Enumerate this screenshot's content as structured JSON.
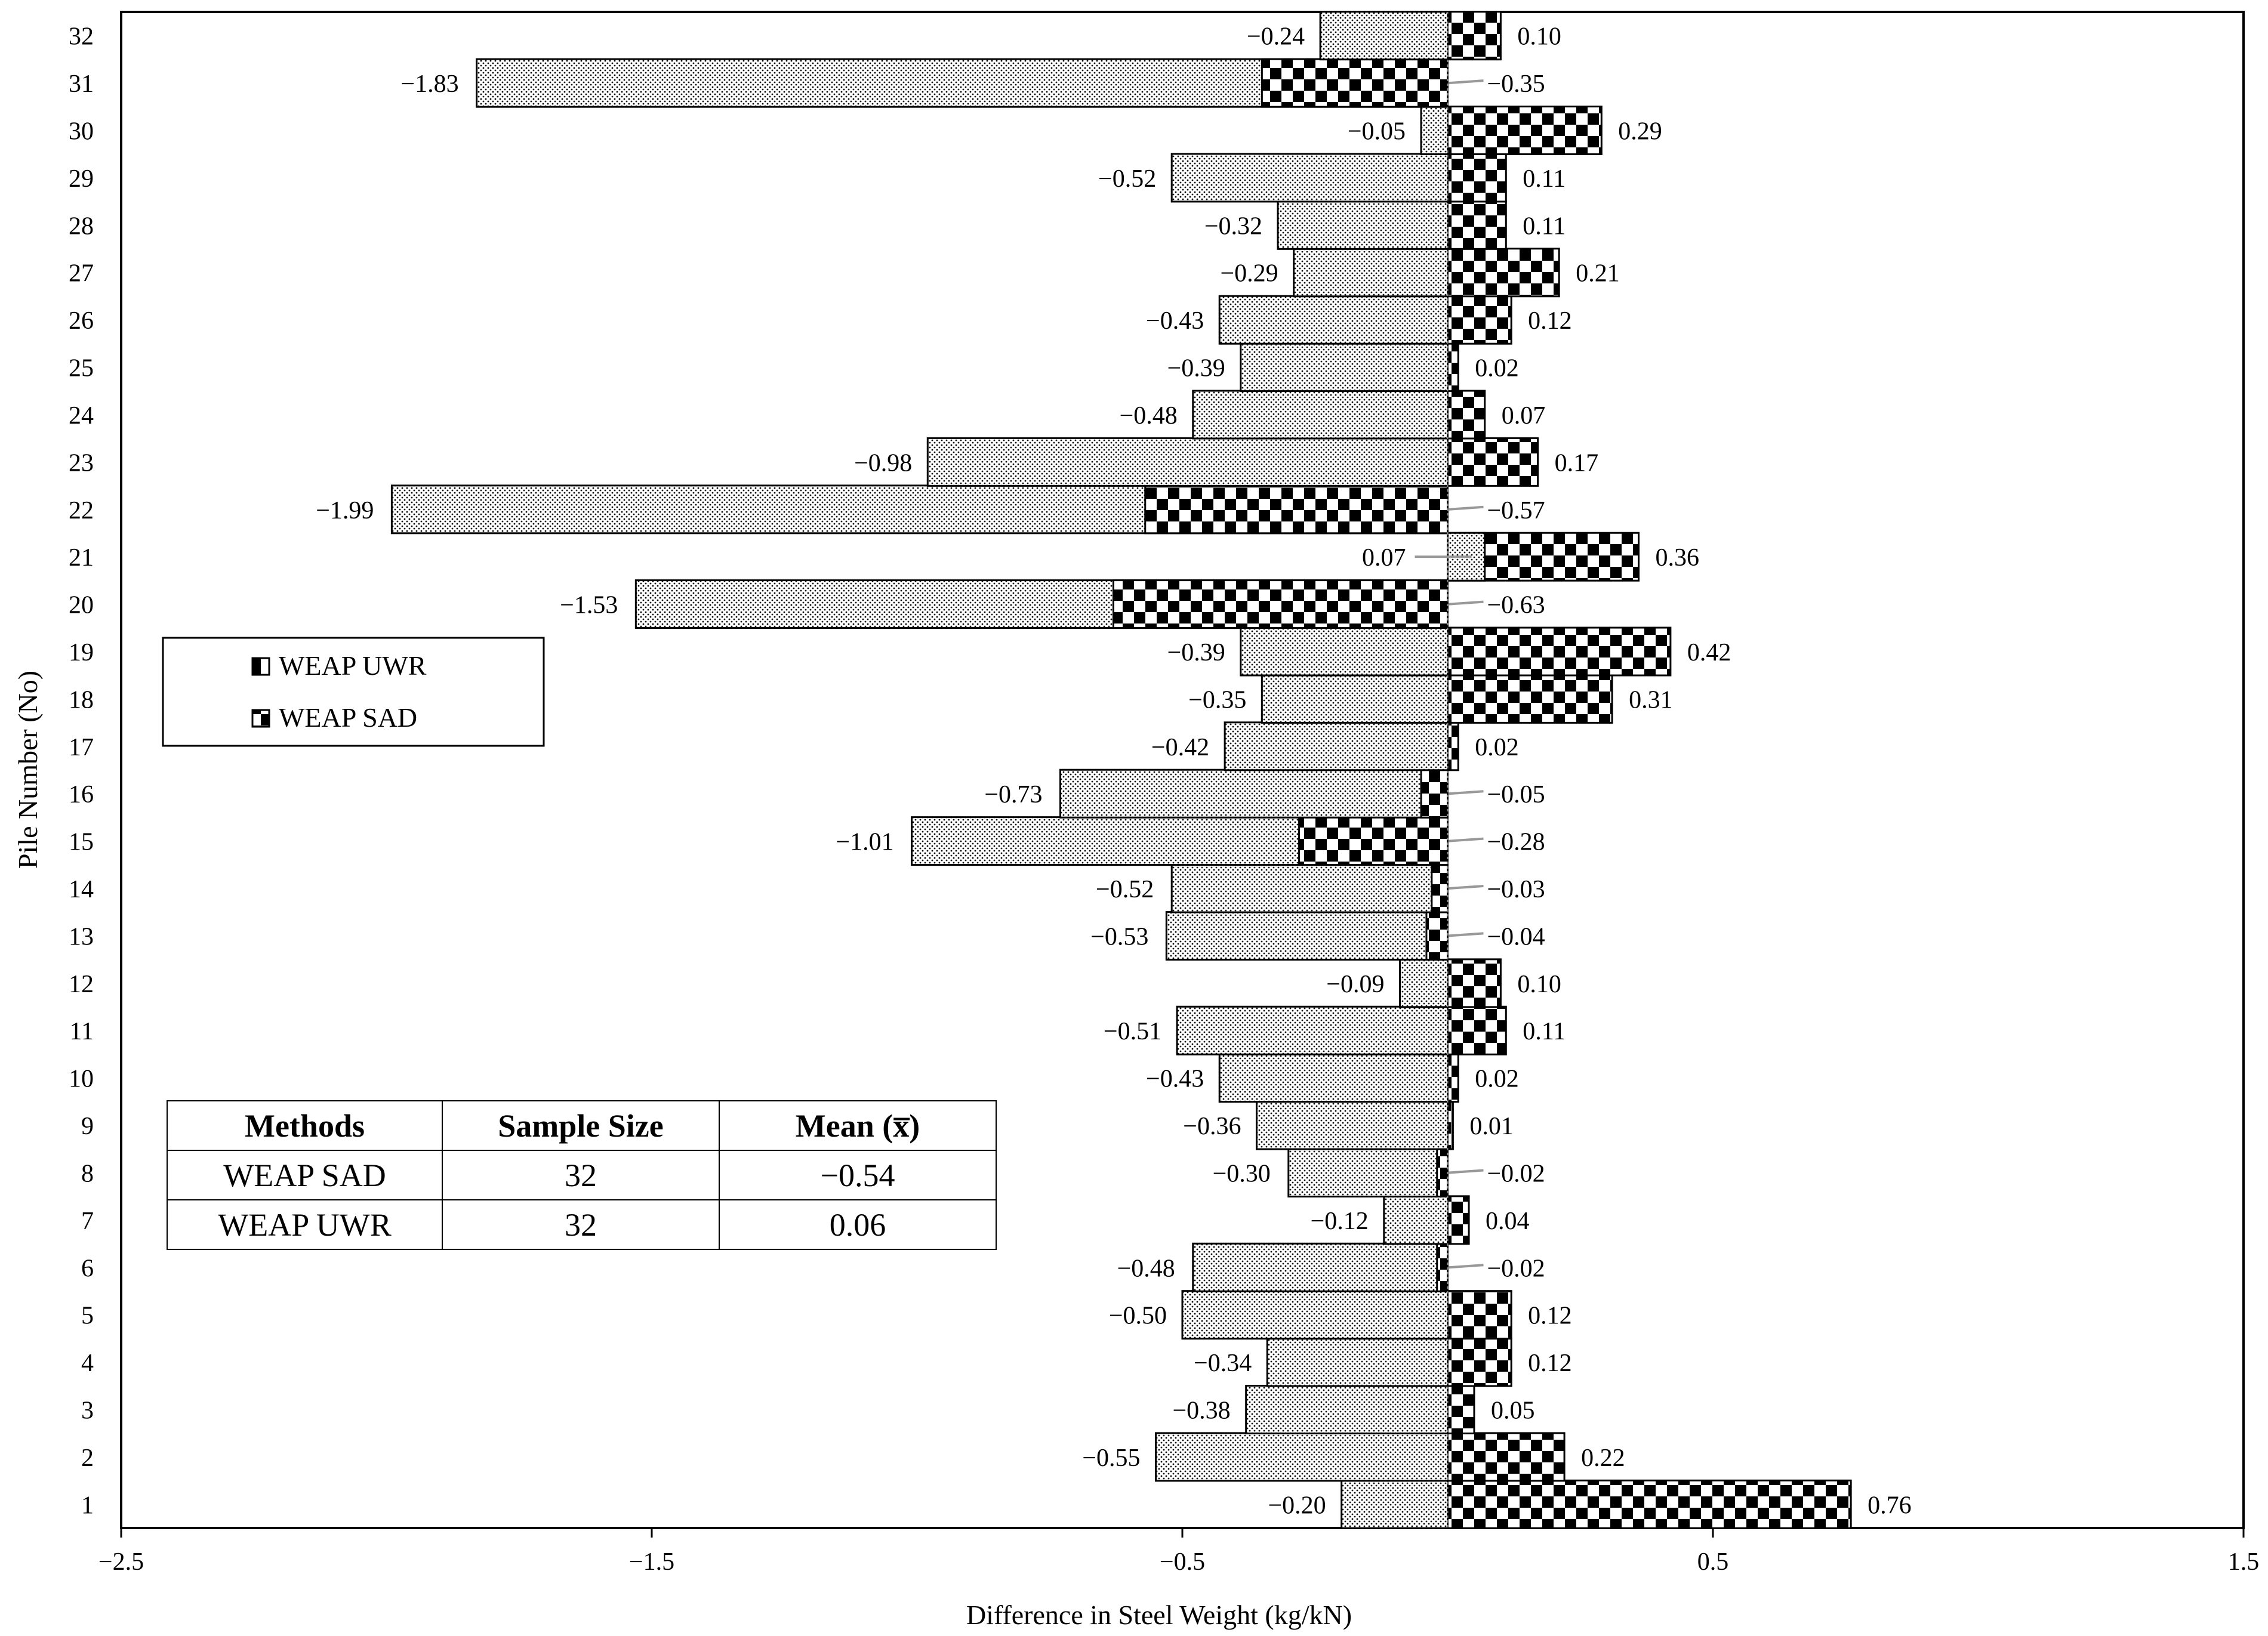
{
  "chart_data": {
    "type": "bar",
    "orientation": "horizontal",
    "xlabel": "Difference in Steel Weight (kg/kN)",
    "ylabel": "Pile Number (No)",
    "xlim": [
      -2.5,
      1.5
    ],
    "xticks": [
      "−2.5",
      "−1.5",
      "−0.5",
      "0.5",
      "1.5"
    ],
    "xtick_values": [
      -2.5,
      -1.5,
      -0.5,
      0.5,
      1.5
    ],
    "categories": [
      "1",
      "2",
      "3",
      "4",
      "5",
      "6",
      "7",
      "8",
      "9",
      "10",
      "11",
      "12",
      "13",
      "14",
      "15",
      "16",
      "17",
      "18",
      "19",
      "20",
      "21",
      "22",
      "23",
      "24",
      "25",
      "26",
      "27",
      "28",
      "29",
      "30",
      "31",
      "32"
    ],
    "series": [
      {
        "name": "WEAP UWR",
        "pattern": "checker",
        "values": [
          0.76,
          0.22,
          0.05,
          0.12,
          0.12,
          -0.02,
          0.04,
          -0.02,
          0.01,
          0.02,
          0.11,
          0.1,
          -0.04,
          -0.03,
          -0.28,
          -0.05,
          0.02,
          0.31,
          0.42,
          -0.63,
          0.36,
          -0.57,
          0.17,
          0.07,
          0.02,
          0.12,
          0.21,
          0.11,
          0.11,
          0.29,
          -0.35,
          0.1
        ],
        "labels": [
          "0.76",
          "0.22",
          "0.05",
          "0.12",
          "0.12",
          "−0.02",
          "0.04",
          "−0.02",
          "0.01",
          "0.02",
          "0.11",
          "0.10",
          "−0.04",
          "−0.03",
          "−0.28",
          "−0.05",
          "0.02",
          "0.31",
          "0.42",
          "−0.63",
          "0.36",
          "−0.57",
          "0.17",
          "0.07",
          "0.02",
          "0.12",
          "0.21",
          "0.11",
          "0.11",
          "0.29",
          "−0.35",
          "0.10"
        ]
      },
      {
        "name": "WEAP SAD",
        "pattern": "dots",
        "values": [
          -0.2,
          -0.55,
          -0.38,
          -0.34,
          -0.5,
          -0.48,
          -0.12,
          -0.3,
          -0.36,
          -0.43,
          -0.51,
          -0.09,
          -0.53,
          -0.52,
          -1.01,
          -0.73,
          -0.42,
          -0.35,
          -0.39,
          -1.53,
          0.07,
          -1.99,
          -0.98,
          -0.48,
          -0.39,
          -0.43,
          -0.29,
          -0.32,
          -0.52,
          -0.05,
          -1.83,
          -0.24
        ],
        "labels": [
          "−0.20",
          "−0.55",
          "−0.38",
          "−0.34",
          "−0.50",
          "−0.48",
          "−0.12",
          "−0.30",
          "−0.36",
          "−0.43",
          "−0.51",
          "−0.09",
          "−0.53",
          "−0.52",
          "−1.01",
          "−0.73",
          "−0.42",
          "−0.35",
          "−0.39",
          "−1.53",
          "0.07",
          "−1.99",
          "−0.98",
          "−0.48",
          "−0.39",
          "−0.43",
          "−0.29",
          "−0.32",
          "−0.52",
          "−0.05",
          "−1.83",
          "−0.24"
        ]
      }
    ],
    "legend": {
      "position": "left-middle",
      "entries": [
        "WEAP UWR",
        "WEAP SAD"
      ]
    },
    "grid": false
  },
  "stats_table": {
    "headers": [
      "Methods",
      "Sample Size",
      "Mean (x̅)"
    ],
    "rows": [
      {
        "method": "WEAP SAD",
        "size": "32",
        "mean": "−0.54"
      },
      {
        "method": "WEAP UWR",
        "size": "32",
        "mean": "0.06"
      }
    ]
  }
}
